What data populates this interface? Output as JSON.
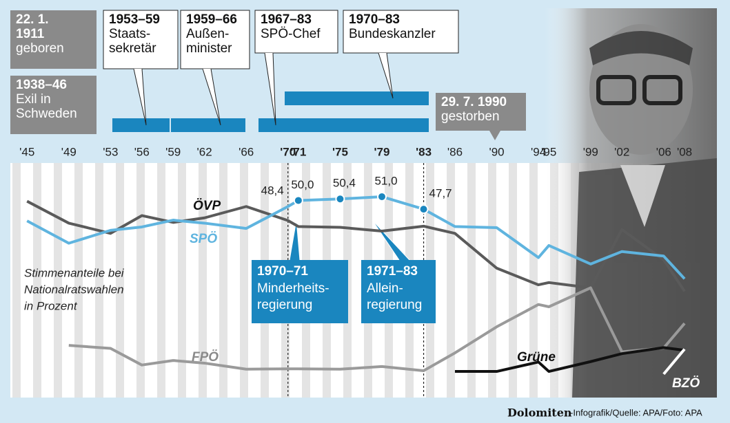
{
  "chart_data": {
    "type": "line",
    "x": [
      1945,
      1949,
      1953,
      1956,
      1959,
      1962,
      1966,
      1970,
      1971,
      1975,
      1979,
      1983,
      1986,
      1990,
      1994,
      1995,
      1999,
      2002,
      2006,
      2008
    ],
    "xlim": [
      1943.4,
      2011.1
    ],
    "xticks": [
      {
        "value": 1945,
        "label": "'45"
      },
      {
        "value": 1949,
        "label": "'49"
      },
      {
        "value": 1953,
        "label": "'53"
      },
      {
        "value": 1956,
        "label": "'56"
      },
      {
        "value": 1959,
        "label": "'59"
      },
      {
        "value": 1962,
        "label": "'62"
      },
      {
        "value": 1966,
        "label": "'66"
      },
      {
        "value": 1970,
        "label": "'70"
      },
      {
        "value": 1971,
        "label": "'71"
      },
      {
        "value": 1975,
        "label": "'75"
      },
      {
        "value": 1979,
        "label": "'79"
      },
      {
        "value": 1983,
        "label": "'83"
      },
      {
        "value": 1986,
        "label": "'86"
      },
      {
        "value": 1990,
        "label": "'90"
      },
      {
        "value": 1994,
        "label": "'94"
      },
      {
        "value": 1995,
        "label": "'95"
      },
      {
        "value": 1999,
        "label": "'99"
      },
      {
        "value": 2002,
        "label": "'02"
      },
      {
        "value": 2006,
        "label": "'06"
      },
      {
        "value": 2008,
        "label": "'08"
      }
    ],
    "ylim": [
      -2.1,
      59.9
    ],
    "reference_lines": [
      1970,
      1983
    ],
    "description": [
      "Stimmenanteile bei",
      "Nationalratswahlen",
      "in Prozent"
    ],
    "series": [
      {
        "name": "ÖVP",
        "color": "#5a5a5a",
        "values": [
          49.8,
          44.0,
          41.3,
          46.0,
          44.2,
          45.4,
          48.4,
          44.7,
          43.1,
          42.9,
          41.9,
          43.2,
          41.3,
          32.1,
          27.7,
          28.3,
          26.9,
          42.3,
          34.3,
          26.0
        ]
      },
      {
        "name": "SPÖ",
        "color": "#5fb4df",
        "values": [
          44.6,
          38.7,
          42.1,
          43.0,
          44.8,
          44.0,
          42.6,
          48.4,
          50.0,
          50.4,
          51.0,
          47.7,
          43.1,
          42.8,
          34.9,
          38.1,
          33.2,
          36.5,
          35.3,
          29.3
        ],
        "value_labels": [
          null,
          null,
          null,
          null,
          null,
          null,
          null,
          "48,4",
          "50,0",
          "50,4",
          "51,0",
          "47,7",
          null,
          null,
          null,
          null,
          null,
          null,
          null,
          null
        ]
      },
      {
        "name": "FPÖ",
        "color": "#9a9a9a",
        "values": [
          null,
          11.7,
          10.9,
          6.5,
          7.7,
          7.0,
          5.4,
          5.5,
          5.5,
          5.4,
          6.1,
          5.0,
          9.7,
          16.6,
          22.5,
          21.9,
          26.9,
          10.0,
          11.0,
          17.5
        ]
      },
      {
        "name": "Grüne",
        "color": "#111111",
        "values": [
          null,
          null,
          null,
          null,
          null,
          null,
          null,
          null,
          null,
          null,
          null,
          null,
          4.8,
          4.8,
          7.3,
          4.8,
          7.4,
          9.5,
          11.1,
          10.4
        ]
      },
      {
        "name": "BZÖ",
        "color": "#ffffff",
        "values": [
          null,
          null,
          null,
          null,
          null,
          null,
          null,
          null,
          null,
          null,
          null,
          null,
          null,
          null,
          null,
          null,
          null,
          null,
          4.1,
          10.7
        ]
      }
    ]
  },
  "timeline": [
    {
      "period": [
        "22. 1.",
        "1911"
      ],
      "text": [
        "geboren"
      ]
    },
    {
      "period": [
        "1938–46"
      ],
      "text": [
        "Exil in",
        "Schweden"
      ]
    },
    {
      "period": [
        "1953–59"
      ],
      "text": [
        "Staats-",
        "sekretär"
      ]
    },
    {
      "period": [
        "1959–66"
      ],
      "text": [
        "Außen-",
        "minister"
      ]
    },
    {
      "period": [
        "1967–83"
      ],
      "text": [
        "SPÖ-Chef"
      ]
    },
    {
      "period": [
        "1970–83"
      ],
      "text": [
        "Bundeskanzler"
      ]
    },
    {
      "period": [
        "29. 7. 1990"
      ],
      "text": [
        "gestorben"
      ]
    }
  ],
  "notes": [
    {
      "period": "1970–71",
      "text": [
        "Minderheits-",
        "regierung"
      ]
    },
    {
      "period": "1971–83",
      "text": [
        "Allein-",
        "regierung"
      ]
    }
  ],
  "footer": {
    "brand": "Dolomiten",
    "credit": "-Infografik/Quelle: APA/Foto: APA"
  }
}
